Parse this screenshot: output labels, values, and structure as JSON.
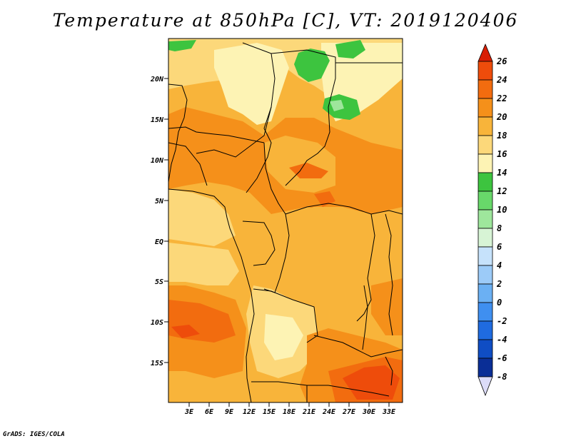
{
  "title": "Temperature at 850hPa [C], VT: 2019120406",
  "credit": "GrADS: IGES/COLA",
  "lat_ticks": [
    "20N",
    "15N",
    "10N",
    "5N",
    "EQ",
    "5S",
    "10S",
    "15S"
  ],
  "lon_ticks": [
    "3E",
    "6E",
    "9E",
    "12E",
    "15E",
    "18E",
    "21E",
    "24E",
    "27E",
    "30E",
    "33E"
  ],
  "colorbar": {
    "labels": [
      "26",
      "24",
      "22",
      "20",
      "18",
      "16",
      "14",
      "12",
      "10",
      "8",
      "6",
      "4",
      "2",
      "0",
      "-2",
      "-4",
      "-6",
      "-8"
    ],
    "colors": {
      "above_26": "#d81e05",
      "24_26": "#ee4c0b",
      "22_24": "#f26c0f",
      "20_22": "#f5901a",
      "18_20": "#f8b43a",
      "16_18": "#fcd87a",
      "14_16": "#fdf3b4",
      "12_14": "#3dc43f",
      "10_12": "#68d86a",
      "8_10": "#9ee69c",
      "6_8": "#d7f4d5",
      "4_6": "#c6e2fb",
      "2_4": "#9ccbf8",
      "0_2": "#6bb0f3",
      "-2_0": "#3f8ff0",
      "-4_-2": "#1f6be0",
      "-6_-4": "#0f4dc4",
      "-8_-6": "#0a2e96",
      "below_-8": "#dcdcf8"
    }
  }
}
